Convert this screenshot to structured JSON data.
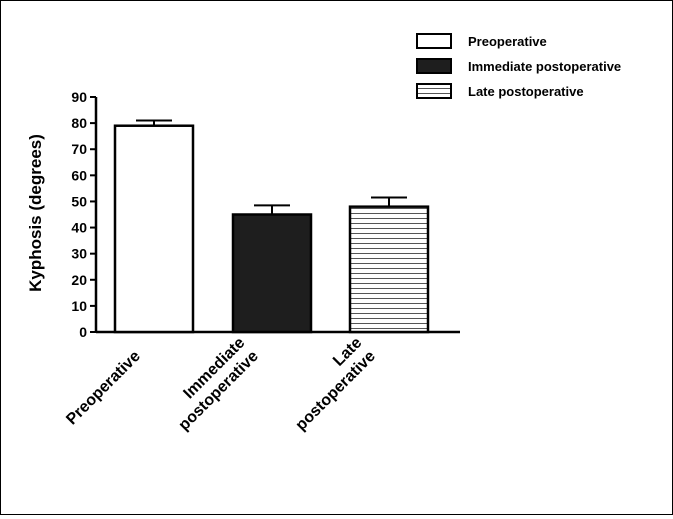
{
  "chart_data": {
    "type": "bar",
    "ylabel": "Kyphosis (degrees)",
    "xlabel": "",
    "ylim": [
      0,
      90
    ],
    "yticks": [
      0,
      10,
      20,
      30,
      40,
      50,
      60,
      70,
      80,
      90
    ],
    "categories": [
      {
        "lines": [
          "Preoperative"
        ]
      },
      {
        "lines": [
          "Immediate",
          "postoperative"
        ]
      },
      {
        "lines": [
          "Late",
          "postoperative"
        ]
      }
    ],
    "values": [
      79,
      45,
      48
    ],
    "error_upper": [
      81,
      48.5,
      51.5
    ],
    "legend": {
      "position": "top-right",
      "entries": [
        "Preoperative",
        "Immediate postoperative",
        "Late postoperative"
      ]
    },
    "bar_styles": [
      "white",
      "black",
      "horizontal-stripes"
    ],
    "colors": {
      "black_fill": "#1e1e1e",
      "stripe": "#555555",
      "outline": "#000000"
    }
  }
}
